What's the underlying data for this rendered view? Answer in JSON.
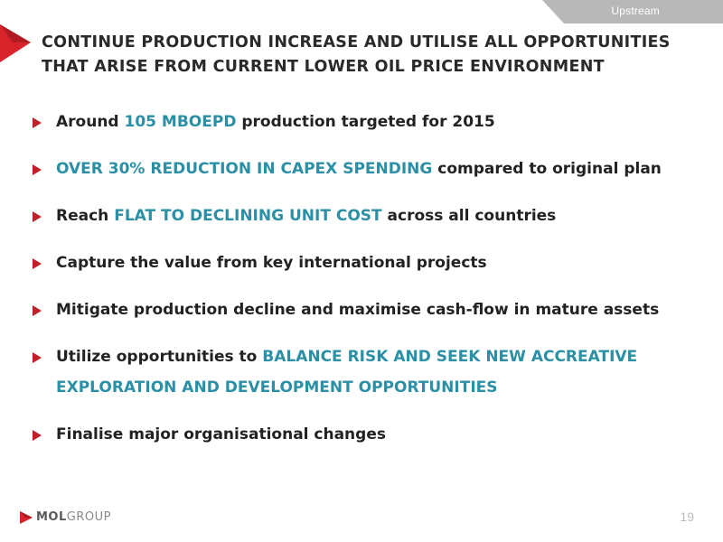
{
  "header": {
    "section_tab": "Upstream",
    "title_line1": "CONTINUE PRODUCTION INCREASE AND UTILISE ALL OPPORTUNITIES",
    "title_line2": "THAT ARISE FROM CURRENT LOWER OIL PRICE ENVIRONMENT"
  },
  "colors": {
    "highlight": "#2b8fa5",
    "accent_red": "#d8232a",
    "tab_gray": "#b8b8b8"
  },
  "bullets": [
    {
      "pre": "Around ",
      "highlight": "105 MBOEPD",
      "post": " production targeted for 2015"
    },
    {
      "pre": "",
      "highlight": "OVER 30% REDUCTION IN CAPEX SPENDING",
      "post": " compared to original plan"
    },
    {
      "pre": "Reach ",
      "highlight": "FLAT TO DECLINING UNIT COST",
      "post": " across all countries"
    },
    {
      "pre": "Capture the value from key international projects",
      "highlight": "",
      "post": ""
    },
    {
      "pre": "Mitigate production decline and maximise cash-flow in mature assets",
      "highlight": "",
      "post": ""
    },
    {
      "pre": "Utilize opportunities to ",
      "highlight": "BALANCE RISK AND SEEK NEW ACCREATIVE",
      "highlight_line2": "EXPLORATION AND DEVELOPMENT OPPORTUNITIES",
      "post": ""
    },
    {
      "pre": "Finalise major organisational changes",
      "highlight": "",
      "post": ""
    }
  ],
  "footer": {
    "logo_mol": "MOL",
    "logo_group": "GROUP",
    "page_number": "19"
  }
}
